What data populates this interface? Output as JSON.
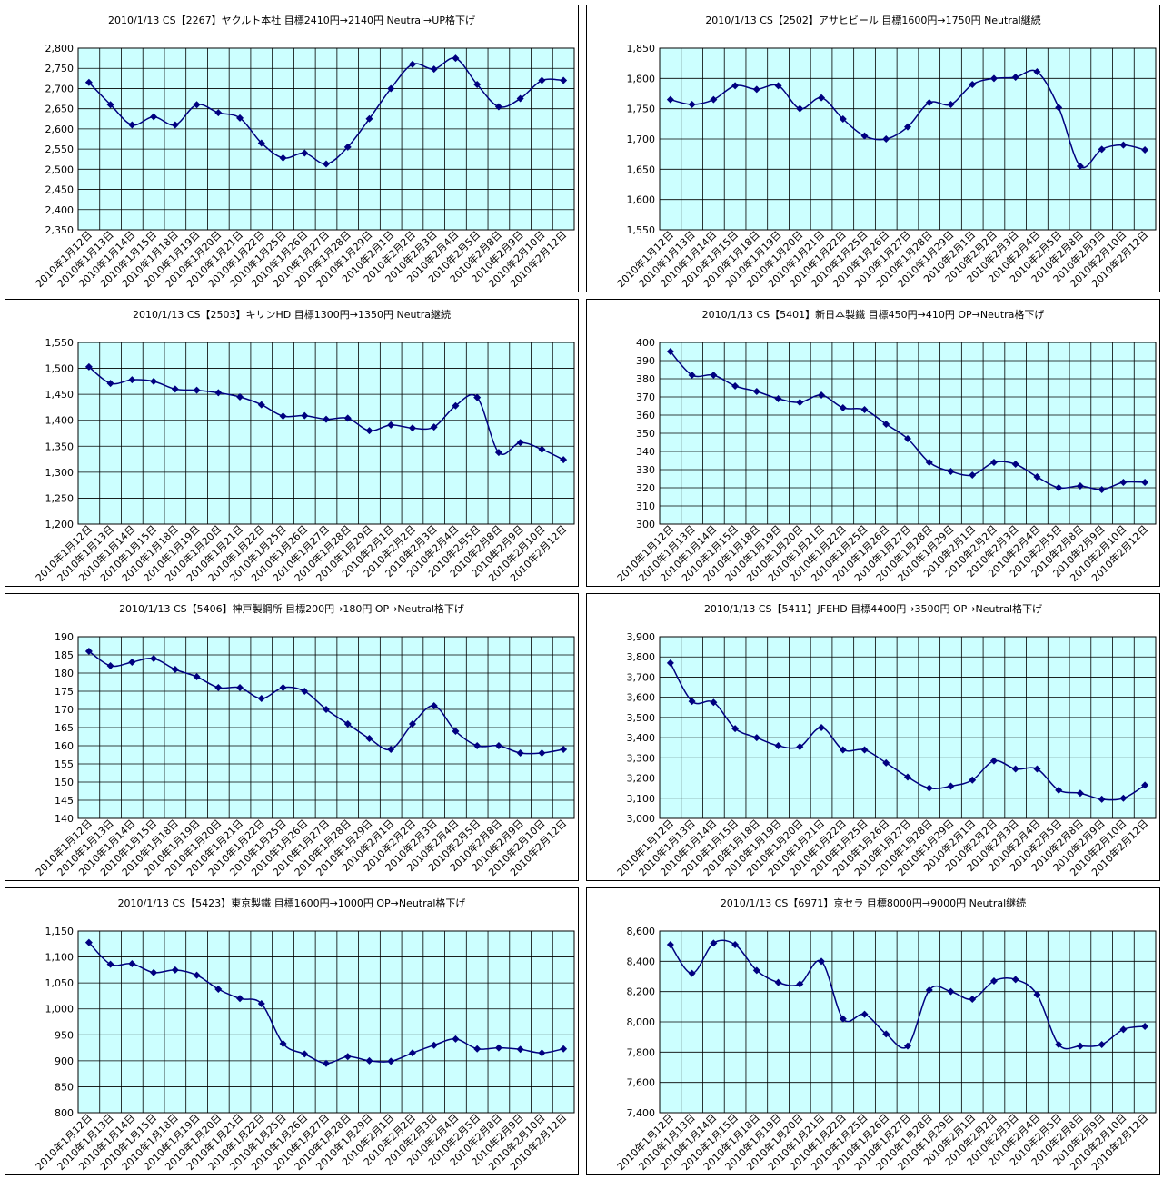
{
  "dates": [
    "2010年1月12日",
    "2010年1月13日",
    "2010年1月14日",
    "2010年1月15日",
    "2010年1月18日",
    "2010年1月19日",
    "2010年1月20日",
    "2010年1月21日",
    "2010年1月22日",
    "2010年1月25日",
    "2010年1月26日",
    "2010年1月27日",
    "2010年1月28日",
    "2010年1月29日",
    "2010年2月1日",
    "2010年2月2日",
    "2010年2月3日",
    "2010年2月4日",
    "2010年2月5日",
    "2010年2月8日",
    "2010年2月9日",
    "2010年2月10日",
    "2010年2月12日"
  ],
  "colors": {
    "plot_bg": "#ccffff",
    "line": "#000080",
    "grid": "#000000"
  },
  "chart_data": [
    {
      "type": "line",
      "title": "2010/1/13 CS【2267】ヤクルト本社 目標2410円→2140円 Neutral→UP格下げ",
      "ylim": [
        2350,
        2800
      ],
      "ystep": 50,
      "grid": true,
      "legend": "none",
      "values": [
        2715,
        2660,
        2610,
        2630,
        2610,
        2660,
        2640,
        2627,
        2565,
        2528,
        2540,
        2513,
        2555,
        2625,
        2700,
        2760,
        2748,
        2775,
        2710,
        2655,
        2675,
        2720,
        2720
      ]
    },
    {
      "type": "line",
      "title": "2010/1/13 CS【2502】アサヒビール 目標1600円→1750円 Neutral継続",
      "ylim": [
        1550,
        1850
      ],
      "ystep": 50,
      "grid": true,
      "legend": "none",
      "values": [
        1765,
        1757,
        1765,
        1788,
        1782,
        1788,
        1750,
        1768,
        1733,
        1705,
        1700,
        1720,
        1760,
        1757,
        1790,
        1800,
        1802,
        1811,
        1752,
        1655,
        1683,
        1690,
        1682
      ]
    },
    {
      "type": "line",
      "title": "2010/1/13 CS【2503】キリンHD 目標1300円→1350円 Neutra継続",
      "ylim": [
        1200,
        1550
      ],
      "ystep": 50,
      "grid": true,
      "legend": "none",
      "values": [
        1503,
        1471,
        1478,
        1475,
        1460,
        1458,
        1453,
        1445,
        1430,
        1408,
        1409,
        1402,
        1404,
        1380,
        1391,
        1385,
        1387,
        1428,
        1444,
        1338,
        1357,
        1344,
        1324
      ]
    },
    {
      "type": "line",
      "title": "2010/1/13 CS【5401】新日本製鐵 目標450円→410円 OP→Neutra格下げ",
      "ylim": [
        300,
        400
      ],
      "ystep": 10,
      "grid": true,
      "legend": "none",
      "values": [
        395,
        382,
        382,
        376,
        373,
        369,
        367,
        371,
        364,
        363,
        355,
        347,
        334,
        329,
        327,
        334,
        333,
        326,
        320,
        321,
        319,
        323,
        323
      ]
    },
    {
      "type": "line",
      "title": "2010/1/13 CS【5406】神戸製鋼所 目標200円→180円 OP→Neutral格下げ",
      "ylim": [
        140,
        190
      ],
      "ystep": 5,
      "grid": true,
      "legend": "none",
      "values": [
        186,
        182,
        183,
        184,
        181,
        179,
        176,
        176,
        173,
        176,
        175,
        170,
        166,
        162,
        159,
        166,
        171,
        164,
        160,
        160,
        158,
        158,
        159
      ]
    },
    {
      "type": "line",
      "title": "2010/1/13 CS【5411】JFEHD 目標4400円→3500円 OP→Neutral格下げ",
      "ylim": [
        3000,
        3900
      ],
      "ystep": 100,
      "grid": true,
      "legend": "none",
      "values": [
        3770,
        3580,
        3575,
        3445,
        3400,
        3360,
        3355,
        3450,
        3340,
        3340,
        3275,
        3205,
        3150,
        3160,
        3190,
        3285,
        3245,
        3245,
        3140,
        3125,
        3095,
        3100,
        3165
      ]
    },
    {
      "type": "line",
      "title": "2010/1/13 CS【5423】東京製鐵 目標1600円→1000円 OP→Neutral格下げ",
      "ylim": [
        800,
        1150
      ],
      "ystep": 50,
      "grid": true,
      "legend": "none",
      "values": [
        1128,
        1086,
        1087,
        1070,
        1075,
        1065,
        1038,
        1020,
        1010,
        933,
        913,
        895,
        908,
        900,
        899,
        915,
        930,
        942,
        923,
        925,
        922,
        915,
        923
      ]
    },
    {
      "type": "line",
      "title": "2010/1/13 CS【6971】京セラ 目標8000円→9000円 Neutral継続",
      "ylim": [
        7400,
        8600
      ],
      "ystep": 200,
      "grid": true,
      "legend": "none",
      "values": [
        8510,
        8320,
        8520,
        8510,
        8340,
        8260,
        8250,
        8400,
        8020,
        8050,
        7920,
        7840,
        8210,
        8200,
        8150,
        8270,
        8280,
        8180,
        7850,
        7840,
        7850,
        7950,
        7970
      ]
    }
  ]
}
